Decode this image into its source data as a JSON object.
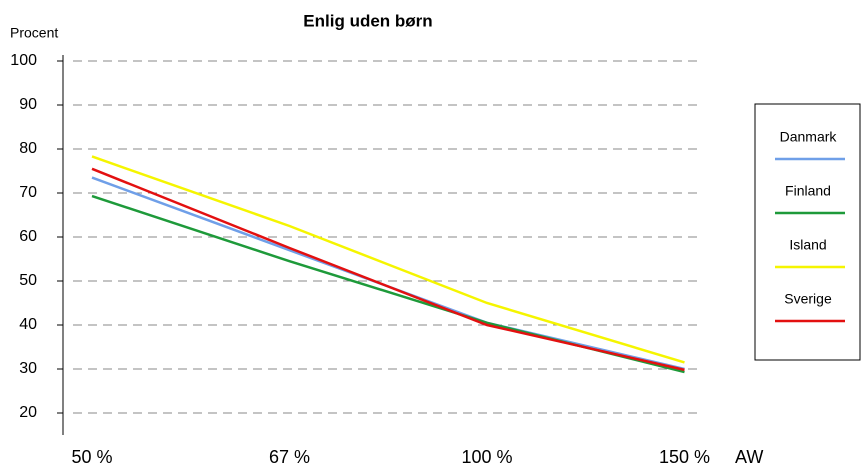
{
  "chart_data": {
    "type": "line",
    "title": "Enlig uden børn",
    "y_label": "Procent",
    "x_label": "AW",
    "categories": [
      "50 %",
      "67 %",
      "100 %",
      "150 %"
    ],
    "series": [
      {
        "name": "Danmark",
        "color": "#6f9fe8",
        "values": [
          73.5,
          57,
          40.5,
          30
        ]
      },
      {
        "name": "Finland",
        "color": "#1e9a3a",
        "values": [
          69.3,
          54.5,
          40.5,
          29.3
        ]
      },
      {
        "name": "Island",
        "color": "#f5f500",
        "values": [
          78.3,
          62.5,
          45,
          31.5
        ]
      },
      {
        "name": "Sverige",
        "color": "#e31010",
        "values": [
          75.5,
          57.5,
          40,
          29.8
        ]
      }
    ],
    "ylim": [
      15,
      100
    ],
    "yticks": [
      20,
      30,
      40,
      50,
      60,
      70,
      80,
      90,
      100
    ],
    "grid": true,
    "legend": "right"
  }
}
